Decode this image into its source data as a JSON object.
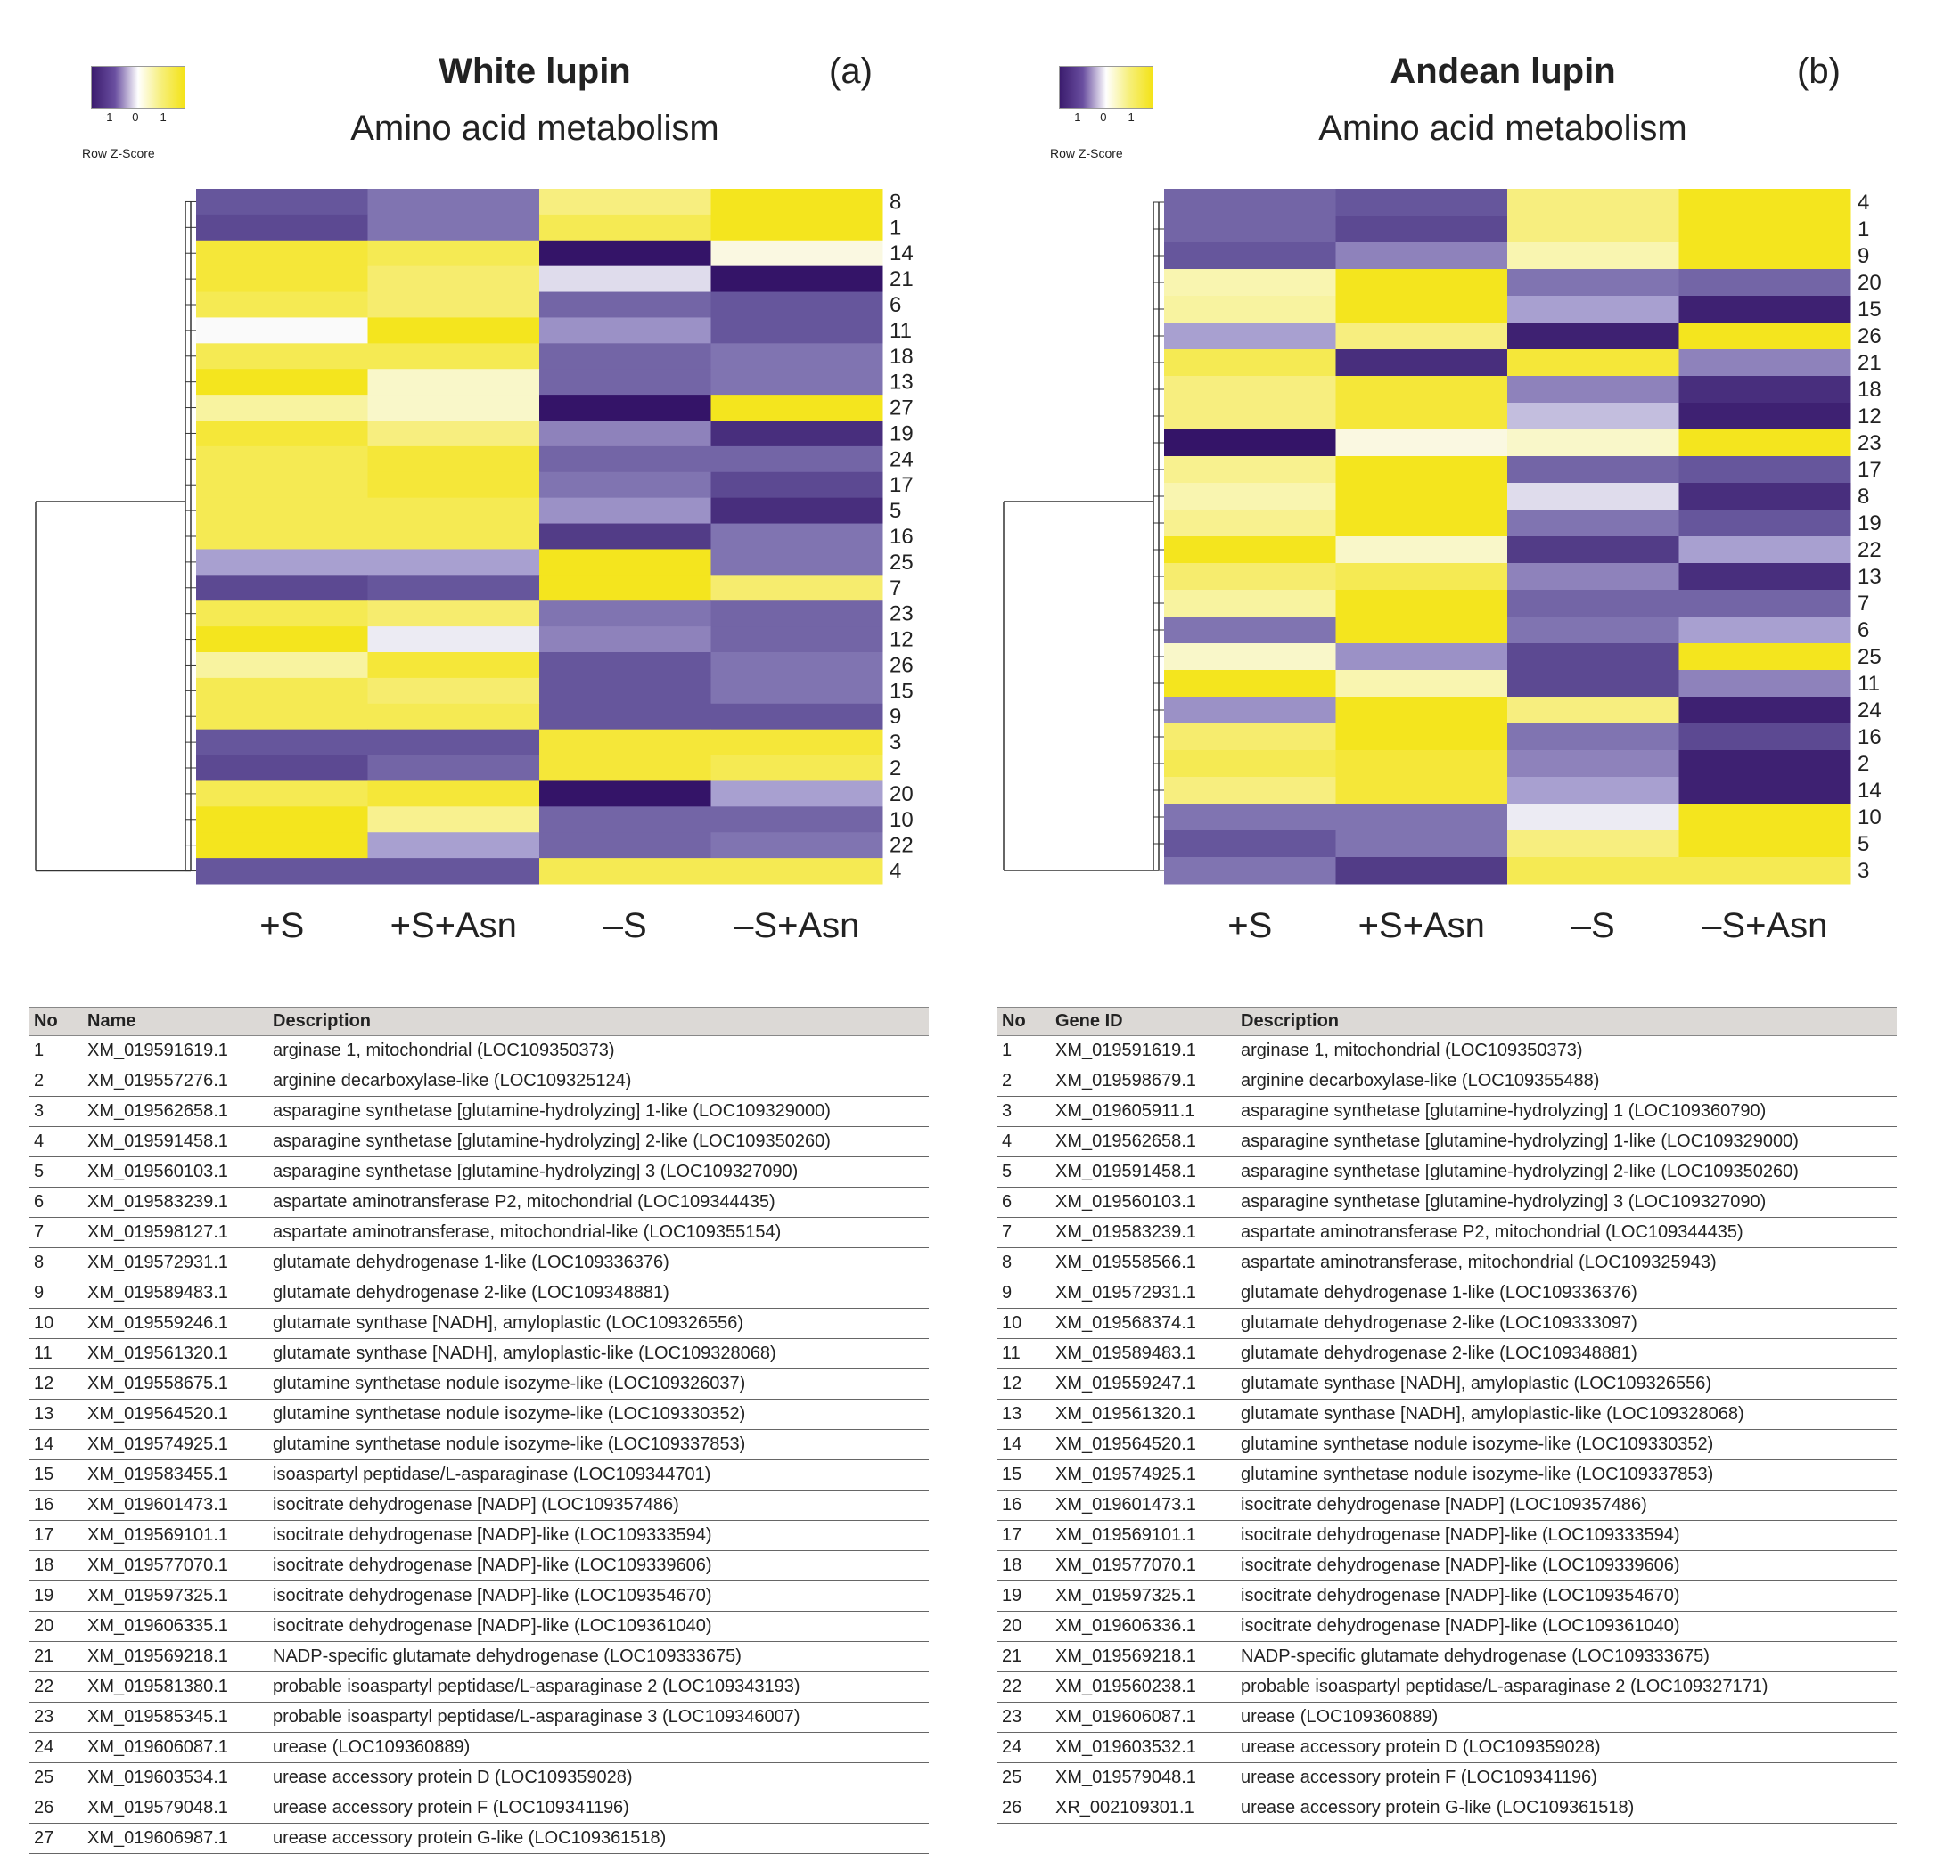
{
  "chart_data": [
    {
      "type": "heatmap",
      "panel": "(a)",
      "title": "White lupin",
      "subtitle": "Amino acid metabolism",
      "legend": {
        "label": "Row Z-Score",
        "ticks": [
          "-1",
          "0",
          "1"
        ]
      },
      "columns": [
        "+S",
        "+S+Asn",
        "–S",
        "–S+Asn"
      ],
      "rows": [
        "8",
        "1",
        "14",
        "21",
        "6",
        "11",
        "18",
        "13",
        "27",
        "19",
        "24",
        "17",
        "5",
        "16",
        "25",
        "7",
        "23",
        "12",
        "26",
        "15",
        "9",
        "3",
        "2",
        "20",
        "10",
        "22",
        "4"
      ],
      "zscores": [
        [
          -0.8,
          -0.6,
          0.6,
          1.0
        ],
        [
          -0.9,
          -0.6,
          0.8,
          1.0
        ],
        [
          0.9,
          0.8,
          -1.3,
          0.1
        ],
        [
          0.9,
          0.7,
          -0.1,
          -1.3
        ],
        [
          0.8,
          0.7,
          -0.7,
          -0.8
        ],
        [
          0.0,
          1.0,
          -0.4,
          -0.8
        ],
        [
          0.8,
          0.8,
          -0.7,
          -0.6
        ],
        [
          1.0,
          0.2,
          -0.7,
          -0.6
        ],
        [
          0.4,
          0.2,
          -1.3,
          1.0
        ],
        [
          0.9,
          0.6,
          -0.5,
          -1.1
        ],
        [
          0.8,
          0.9,
          -0.7,
          -0.7
        ],
        [
          0.8,
          0.9,
          -0.6,
          -0.9
        ],
        [
          0.8,
          0.8,
          -0.4,
          -1.1
        ],
        [
          0.8,
          0.8,
          -1.0,
          -0.6
        ],
        [
          -0.3,
          -0.3,
          1.0,
          -0.6
        ],
        [
          -0.9,
          -0.8,
          1.0,
          0.7
        ],
        [
          0.8,
          0.7,
          -0.6,
          -0.7
        ],
        [
          1.0,
          -0.05,
          -0.5,
          -0.7
        ],
        [
          0.4,
          0.9,
          -0.8,
          -0.6
        ],
        [
          0.8,
          0.7,
          -0.8,
          -0.6
        ],
        [
          0.8,
          0.8,
          -0.8,
          -0.8
        ],
        [
          -0.8,
          -0.8,
          0.9,
          0.9
        ],
        [
          -0.9,
          -0.7,
          0.9,
          0.8
        ],
        [
          0.8,
          0.9,
          -1.3,
          -0.3
        ],
        [
          1.0,
          0.5,
          -0.7,
          -0.7
        ],
        [
          1.0,
          -0.3,
          -0.7,
          -0.6
        ],
        [
          -0.8,
          -0.8,
          0.8,
          0.8
        ]
      ]
    },
    {
      "type": "heatmap",
      "panel": "(b)",
      "title": "Andean lupin",
      "subtitle": "Amino acid metabolism",
      "legend": {
        "label": "Row Z-Score",
        "ticks": [
          "-1",
          "0",
          "1"
        ]
      },
      "columns": [
        "+S",
        "+S+Asn",
        "–S",
        "–S+Asn"
      ],
      "rows": [
        "4",
        "1",
        "9",
        "20",
        "15",
        "26",
        "21",
        "18",
        "12",
        "23",
        "17",
        "8",
        "19",
        "22",
        "13",
        "7",
        "6",
        "25",
        "11",
        "24",
        "16",
        "2",
        "14",
        "10",
        "5",
        "3"
      ],
      "zscores": [
        [
          -0.7,
          -0.8,
          0.6,
          1.0
        ],
        [
          -0.7,
          -0.9,
          0.6,
          1.0
        ],
        [
          -0.8,
          -0.5,
          0.3,
          1.0
        ],
        [
          0.3,
          1.0,
          -0.6,
          -0.7
        ],
        [
          0.4,
          1.0,
          -0.3,
          -1.2
        ],
        [
          -0.3,
          0.6,
          -1.2,
          1.0
        ],
        [
          0.8,
          -1.1,
          0.9,
          -0.5
        ],
        [
          0.6,
          0.9,
          -0.5,
          -1.1
        ],
        [
          0.6,
          0.9,
          -0.2,
          -1.2
        ],
        [
          -1.3,
          0.1,
          0.2,
          1.0
        ],
        [
          0.5,
          1.0,
          -0.7,
          -0.8
        ],
        [
          0.3,
          1.0,
          -0.1,
          -1.1
        ],
        [
          0.5,
          1.0,
          -0.6,
          -0.8
        ],
        [
          1.0,
          0.2,
          -1.0,
          -0.3
        ],
        [
          0.7,
          0.8,
          -0.5,
          -1.1
        ],
        [
          0.4,
          1.0,
          -0.7,
          -0.7
        ],
        [
          -0.6,
          1.0,
          -0.6,
          -0.3
        ],
        [
          0.2,
          -0.4,
          -0.9,
          1.0
        ],
        [
          1.0,
          0.3,
          -0.9,
          -0.5
        ],
        [
          -0.4,
          1.0,
          0.6,
          -1.2
        ],
        [
          0.7,
          1.0,
          -0.6,
          -0.9
        ],
        [
          0.8,
          0.9,
          -0.5,
          -1.2
        ],
        [
          0.6,
          0.9,
          -0.3,
          -1.2
        ],
        [
          -0.6,
          -0.6,
          -0.05,
          1.0
        ],
        [
          -0.8,
          -0.6,
          0.6,
          1.0
        ],
        [
          -0.6,
          -1.0,
          0.8,
          0.8
        ]
      ]
    }
  ],
  "tables": {
    "a": {
      "headers": [
        "No",
        "Name",
        "Description"
      ],
      "rows": [
        [
          "1",
          "XM_019591619.1",
          "arginase 1, mitochondrial (LOC109350373)"
        ],
        [
          "2",
          "XM_019557276.1",
          "arginine decarboxylase-like (LOC109325124)"
        ],
        [
          "3",
          "XM_019562658.1",
          "asparagine synthetase [glutamine-hydrolyzing] 1-like (LOC109329000)"
        ],
        [
          "4",
          "XM_019591458.1",
          "asparagine synthetase [glutamine-hydrolyzing] 2-like (LOC109350260)"
        ],
        [
          "5",
          "XM_019560103.1",
          "asparagine synthetase [glutamine-hydrolyzing] 3 (LOC109327090)"
        ],
        [
          "6",
          "XM_019583239.1",
          "aspartate aminotransferase P2, mitochondrial (LOC109344435)"
        ],
        [
          "7",
          "XM_019598127.1",
          "aspartate aminotransferase, mitochondrial-like (LOC109355154)"
        ],
        [
          "8",
          "XM_019572931.1",
          "glutamate dehydrogenase 1-like (LOC109336376)"
        ],
        [
          "9",
          "XM_019589483.1",
          "glutamate dehydrogenase 2-like (LOC109348881)"
        ],
        [
          "10",
          "XM_019559246.1",
          "glutamate synthase [NADH], amyloplastic (LOC109326556)"
        ],
        [
          "11",
          "XM_019561320.1",
          "glutamate synthase [NADH], amyloplastic-like (LOC109328068)"
        ],
        [
          "12",
          "XM_019558675.1",
          "glutamine synthetase nodule isozyme-like (LOC109326037)"
        ],
        [
          "13",
          "XM_019564520.1",
          "glutamine synthetase nodule isozyme-like (LOC109330352)"
        ],
        [
          "14",
          "XM_019574925.1",
          "glutamine synthetase nodule isozyme-like (LOC109337853)"
        ],
        [
          "15",
          "XM_019583455.1",
          "isoaspartyl peptidase/L-asparaginase (LOC109344701)"
        ],
        [
          "16",
          "XM_019601473.1",
          "isocitrate dehydrogenase [NADP] (LOC109357486)"
        ],
        [
          "17",
          "XM_019569101.1",
          "isocitrate dehydrogenase [NADP]-like (LOC109333594)"
        ],
        [
          "18",
          "XM_019577070.1",
          "isocitrate dehydrogenase [NADP]-like (LOC109339606)"
        ],
        [
          "19",
          "XM_019597325.1",
          "isocitrate dehydrogenase [NADP]-like (LOC109354670)"
        ],
        [
          "20",
          "XM_019606335.1",
          "isocitrate dehydrogenase [NADP]-like (LOC109361040)"
        ],
        [
          "21",
          "XM_019569218.1",
          "NADP-specific glutamate dehydrogenase (LOC109333675)"
        ],
        [
          "22",
          "XM_019581380.1",
          "probable isoaspartyl peptidase/L-asparaginase 2 (LOC109343193)"
        ],
        [
          "23",
          "XM_019585345.1",
          "probable isoaspartyl peptidase/L-asparaginase 3 (LOC109346007)"
        ],
        [
          "24",
          "XM_019606087.1",
          "urease (LOC109360889)"
        ],
        [
          "25",
          "XM_019603534.1",
          "urease accessory protein D (LOC109359028)"
        ],
        [
          "26",
          "XM_019579048.1",
          "urease accessory protein F (LOC109341196)"
        ],
        [
          "27",
          "XM_019606987.1",
          "urease accessory protein G-like (LOC109361518)"
        ]
      ]
    },
    "b": {
      "headers": [
        "No",
        "Gene ID",
        "Description"
      ],
      "rows": [
        [
          "1",
          "XM_019591619.1",
          "arginase 1, mitochondrial (LOC109350373)"
        ],
        [
          "2",
          "XM_019598679.1",
          "arginine decarboxylase-like (LOC109355488)"
        ],
        [
          "3",
          "XM_019605911.1",
          "asparagine synthetase [glutamine-hydrolyzing] 1 (LOC109360790)"
        ],
        [
          "4",
          "XM_019562658.1",
          "asparagine synthetase [glutamine-hydrolyzing] 1-like (LOC109329000)"
        ],
        [
          "5",
          "XM_019591458.1",
          "asparagine synthetase [glutamine-hydrolyzing] 2-like (LOC109350260)"
        ],
        [
          "6",
          "XM_019560103.1",
          "asparagine synthetase [glutamine-hydrolyzing] 3 (LOC109327090)"
        ],
        [
          "7",
          "XM_019583239.1",
          "aspartate aminotransferase P2, mitochondrial (LOC109344435)"
        ],
        [
          "8",
          "XM_019558566.1",
          "aspartate aminotransferase, mitochondrial (LOC109325943)"
        ],
        [
          "9",
          "XM_019572931.1",
          "glutamate dehydrogenase 1-like (LOC109336376)"
        ],
        [
          "10",
          "XM_019568374.1",
          "glutamate dehydrogenase 2-like (LOC109333097)"
        ],
        [
          "11",
          "XM_019589483.1",
          "glutamate dehydrogenase 2-like (LOC109348881)"
        ],
        [
          "12",
          "XM_019559247.1",
          "glutamate synthase [NADH], amyloplastic (LOC109326556)"
        ],
        [
          "13",
          "XM_019561320.1",
          "glutamate synthase [NADH], amyloplastic-like (LOC109328068)"
        ],
        [
          "14",
          "XM_019564520.1",
          "glutamine synthetase nodule isozyme-like (LOC109330352)"
        ],
        [
          "15",
          "XM_019574925.1",
          "glutamine synthetase nodule isozyme-like (LOC109337853)"
        ],
        [
          "16",
          "XM_019601473.1",
          "isocitrate dehydrogenase [NADP] (LOC109357486)"
        ],
        [
          "17",
          "XM_019569101.1",
          "isocitrate dehydrogenase [NADP]-like (LOC109333594)"
        ],
        [
          "18",
          "XM_019577070.1",
          "isocitrate dehydrogenase [NADP]-like (LOC109339606)"
        ],
        [
          "19",
          "XM_019597325.1",
          "isocitrate dehydrogenase [NADP]-like (LOC109354670)"
        ],
        [
          "20",
          "XM_019606336.1",
          "isocitrate dehydrogenase [NADP]-like (LOC109361040)"
        ],
        [
          "21",
          "XM_019569218.1",
          "NADP-specific glutamate dehydrogenase (LOC109333675)"
        ],
        [
          "22",
          "XM_019560238.1",
          "probable isoaspartyl peptidase/L-asparaginase 2 (LOC109327171)"
        ],
        [
          "23",
          "XM_019606087.1",
          "urease (LOC109360889)"
        ],
        [
          "24",
          "XM_019603532.1",
          "urease accessory protein D (LOC109359028)"
        ],
        [
          "25",
          "XM_019579048.1",
          "urease accessory protein F (LOC109341196)"
        ],
        [
          "26",
          "XR_002109301.1",
          "urease accessory protein G-like (LOC109361518)"
        ]
      ]
    }
  }
}
